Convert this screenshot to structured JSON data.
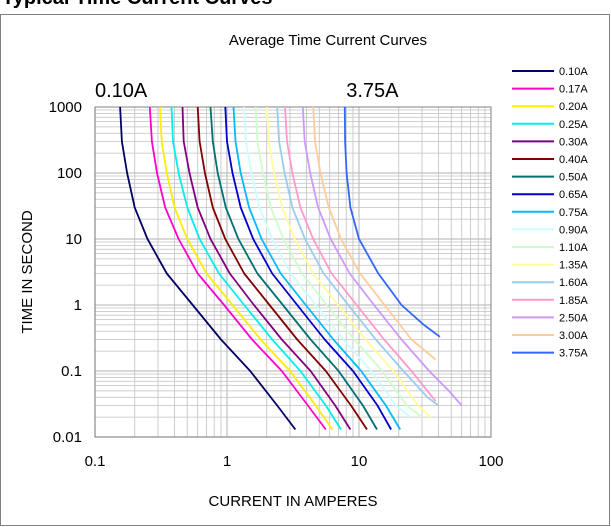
{
  "page": {
    "heading": "Typical Time Current Curves"
  },
  "chart_data": {
    "type": "line",
    "title": "Average Time Current Curves",
    "xlabel": "CURRENT IN AMPERES",
    "ylabel": "TIME IN SECOND",
    "xscale": "log",
    "yscale": "log",
    "xlim": [
      0.1,
      100
    ],
    "ylim": [
      0.01,
      1000
    ],
    "xticks": [
      "0.1",
      "1",
      "10",
      "100"
    ],
    "yticks": [
      "0.01",
      "0.1",
      "1",
      "10",
      "100",
      "1000"
    ],
    "grid": true,
    "legend_position": "right",
    "annotations": [
      {
        "text": "0.10A",
        "x": 0.1,
        "y": 1000
      },
      {
        "text": "3.75A",
        "x": 8,
        "y": 1000
      }
    ],
    "series": [
      {
        "name": "0.10A",
        "color": "#000066",
        "x": [
          0.155,
          0.16,
          0.175,
          0.2,
          0.25,
          0.35,
          0.55,
          0.9,
          1.5,
          2.4,
          3.3
        ],
        "y": [
          1000,
          300,
          100,
          30,
          10,
          3,
          1,
          0.3,
          0.1,
          0.03,
          0.013
        ]
      },
      {
        "name": "0.17A",
        "color": "#ff00cc",
        "x": [
          0.26,
          0.27,
          0.295,
          0.34,
          0.43,
          0.6,
          0.95,
          1.55,
          2.6,
          4.1,
          5.6
        ],
        "y": [
          1000,
          300,
          100,
          30,
          10,
          3,
          1,
          0.3,
          0.1,
          0.03,
          0.013
        ]
      },
      {
        "name": "0.20A",
        "color": "#ffee00",
        "x": [
          0.31,
          0.32,
          0.35,
          0.4,
          0.5,
          0.7,
          1.1,
          1.8,
          3.0,
          4.7,
          6.3
        ],
        "y": [
          1000,
          300,
          100,
          30,
          10,
          3,
          1,
          0.3,
          0.1,
          0.03,
          0.013
        ]
      },
      {
        "name": "0.25A",
        "color": "#00eeee",
        "x": [
          0.38,
          0.39,
          0.43,
          0.5,
          0.62,
          0.87,
          1.35,
          2.2,
          3.6,
          5.6,
          7.3
        ],
        "y": [
          1000,
          300,
          100,
          30,
          10,
          3,
          1,
          0.3,
          0.1,
          0.03,
          0.013
        ]
      },
      {
        "name": "0.30A",
        "color": "#800080",
        "x": [
          0.46,
          0.47,
          0.52,
          0.6,
          0.75,
          1.05,
          1.6,
          2.6,
          4.3,
          6.6,
          8.6
        ],
        "y": [
          1000,
          300,
          100,
          30,
          10,
          3,
          1,
          0.3,
          0.1,
          0.03,
          0.013
        ]
      },
      {
        "name": "0.40A",
        "color": "#800000",
        "x": [
          0.6,
          0.62,
          0.68,
          0.78,
          0.97,
          1.35,
          2.1,
          3.4,
          5.6,
          8.7,
          11.5
        ],
        "y": [
          1000,
          300,
          100,
          30,
          10,
          3,
          1,
          0.3,
          0.1,
          0.03,
          0.013
        ]
      },
      {
        "name": "0.50A",
        "color": "#007070",
        "x": [
          0.75,
          0.78,
          0.85,
          0.98,
          1.22,
          1.7,
          2.65,
          4.3,
          7.0,
          10.7,
          13.7
        ],
        "y": [
          1000,
          300,
          100,
          30,
          10,
          3,
          1,
          0.3,
          0.1,
          0.03,
          0.013
        ]
      },
      {
        "name": "0.65A",
        "color": "#0000cc",
        "x": [
          0.97,
          1.0,
          1.1,
          1.27,
          1.58,
          2.2,
          3.4,
          5.5,
          9.0,
          13.8,
          17.5
        ],
        "y": [
          1000,
          300,
          100,
          30,
          10,
          3,
          1,
          0.3,
          0.1,
          0.03,
          0.013
        ]
      },
      {
        "name": "0.75A",
        "color": "#00bbff",
        "x": [
          1.12,
          1.16,
          1.27,
          1.47,
          1.83,
          2.55,
          3.95,
          6.4,
          10.4,
          16.0,
          20.5
        ],
        "y": [
          1000,
          300,
          100,
          30,
          10,
          3,
          1,
          0.3,
          0.1,
          0.03,
          0.013
        ]
      },
      {
        "name": "0.90A",
        "color": "#ccffff",
        "x": [
          1.35,
          1.39,
          1.53,
          1.76,
          2.2,
          3.05,
          4.7,
          7.6,
          12.4,
          19.0,
          24.5
        ],
        "y": [
          1000,
          300,
          100,
          30,
          10,
          3,
          1,
          0.3,
          0.1,
          0.03,
          0.02
        ]
      },
      {
        "name": "1.10A",
        "color": "#ccffcc",
        "x": [
          1.65,
          1.7,
          1.87,
          2.15,
          2.68,
          3.7,
          5.7,
          9.2,
          15.0,
          23.0,
          30.0
        ],
        "y": [
          1000,
          300,
          100,
          30,
          10,
          3,
          1,
          0.3,
          0.1,
          0.03,
          0.02
        ]
      },
      {
        "name": "1.35A",
        "color": "#ffff99",
        "x": [
          2.0,
          2.07,
          2.28,
          2.62,
          3.25,
          4.5,
          6.95,
          11.2,
          18.2,
          28.0,
          35.0
        ],
        "y": [
          1000,
          300,
          100,
          30,
          10,
          3,
          1,
          0.3,
          0.1,
          0.03,
          0.02
        ]
      },
      {
        "name": "1.60A",
        "color": "#99ccee",
        "x": [
          2.4,
          2.48,
          2.73,
          3.13,
          3.9,
          5.4,
          8.3,
          13.4,
          21.7,
          33.0,
          40.0
        ],
        "y": [
          1000,
          300,
          100,
          30,
          10,
          3,
          1,
          0.3,
          0.1,
          0.04,
          0.03
        ]
      },
      {
        "name": "1.85A",
        "color": "#ff99cc",
        "x": [
          2.75,
          2.85,
          3.13,
          3.6,
          4.5,
          6.2,
          9.6,
          15.5,
          25.0,
          38.0
        ],
        "y": [
          1000,
          300,
          100,
          30,
          10,
          3,
          1,
          0.3,
          0.1,
          0.035
        ]
      },
      {
        "name": "2.50A",
        "color": "#cc99ff",
        "x": [
          3.75,
          3.88,
          4.27,
          4.9,
          6.1,
          8.5,
          13.0,
          21.0,
          34.0,
          48.0,
          60.0
        ],
        "y": [
          1000,
          300,
          100,
          30,
          10,
          3,
          1,
          0.3,
          0.1,
          0.05,
          0.03
        ]
      },
      {
        "name": "3.00A",
        "color": "#ffcc99",
        "x": [
          4.5,
          4.65,
          5.1,
          5.9,
          7.3,
          10.2,
          15.6,
          25.0,
          38.0
        ],
        "y": [
          1000,
          300,
          100,
          30,
          10,
          3,
          1,
          0.3,
          0.15
        ]
      },
      {
        "name": "3.75A",
        "color": "#3366ff",
        "x": [
          7.8,
          7.85,
          8.05,
          8.6,
          10.0,
          14.0,
          21.0,
          31.0,
          41.0
        ],
        "y": [
          1000,
          300,
          100,
          30,
          10,
          3,
          1,
          0.5,
          0.33
        ]
      }
    ]
  }
}
